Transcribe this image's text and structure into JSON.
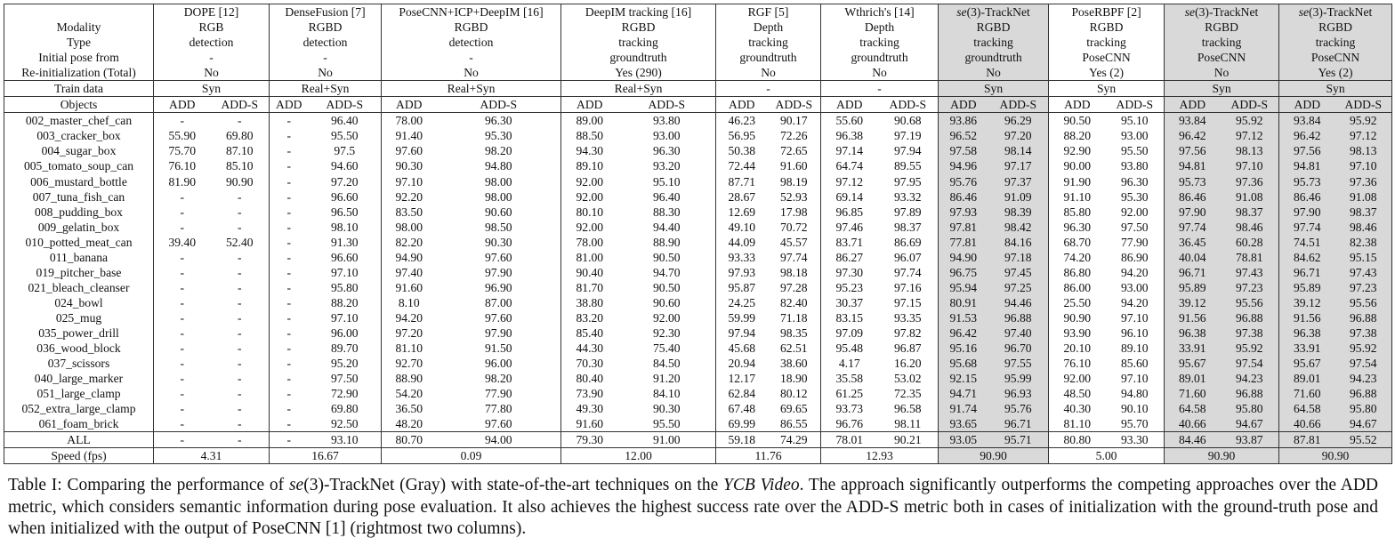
{
  "header": {
    "methods": [
      {
        "name": "DOPE [12]",
        "modality": "RGB",
        "type": "detection",
        "initial_pose": "-",
        "reinit": "No",
        "train": "Syn",
        "speed": "4.31"
      },
      {
        "name": "DenseFusion [7]",
        "modality": "RGBD",
        "type": "detection",
        "initial_pose": "-",
        "reinit": "No",
        "train": "Real+Syn",
        "speed": "16.67"
      },
      {
        "name": "PoseCNN+ICP+DeepIM [16]",
        "modality": "RGBD",
        "type": "detection",
        "initial_pose": "-",
        "reinit": "No",
        "train": "Real+Syn",
        "speed": "0.09"
      },
      {
        "name": "DeepIM tracking [16]",
        "modality": "RGBD",
        "type": "tracking",
        "initial_pose": "groundtruth",
        "reinit": "Yes (290)",
        "train": "Real+Syn",
        "speed": "12.00"
      },
      {
        "name": "RGF [5]",
        "modality": "Depth",
        "type": "tracking",
        "initial_pose": "groundtruth",
        "reinit": "No",
        "train": "-",
        "speed": "11.76"
      },
      {
        "name": "Wthrich's [14]",
        "modality": "Depth",
        "type": "tracking",
        "initial_pose": "groundtruth",
        "reinit": "No",
        "train": "-",
        "speed": "12.93"
      },
      {
        "name_prefix": "se",
        "name_mid": "(3)-TrackNet",
        "modality": "RGBD",
        "type": "tracking",
        "initial_pose": "groundtruth",
        "reinit": "No",
        "train": "Syn",
        "speed": "90.90"
      },
      {
        "name": "PoseRBPF [2]",
        "modality": "RGBD",
        "type": "tracking",
        "initial_pose": "PoseCNN",
        "reinit": "Yes (2)",
        "train": "Syn",
        "speed": "5.00"
      },
      {
        "name_prefix": "se",
        "name_mid": "(3)-TrackNet",
        "modality": "RGBD",
        "type": "tracking",
        "initial_pose": "PoseCNN",
        "reinit": "No",
        "train": "Syn",
        "speed": "90.90"
      },
      {
        "name_prefix": "se",
        "name_mid": "(3)-TrackNet",
        "modality": "RGBD",
        "type": "tracking",
        "initial_pose": "PoseCNN",
        "reinit": "Yes (2)",
        "train": "Syn",
        "speed": "90.90"
      }
    ],
    "row_labels": {
      "modality": "Modality",
      "type": "Type",
      "initial_pose": "Initial pose from",
      "reinit": "Re-initialization (Total)",
      "train": "Train data",
      "objects": "Objects",
      "speed": "Speed (fps)"
    },
    "add": "ADD",
    "adds": "ADD-S"
  },
  "rows": [
    {
      "obj": "002_master_chef_can",
      "v": [
        "-",
        "-",
        "-",
        "96.40",
        "78.00",
        "96.30",
        "89.00",
        "93.80",
        "46.23",
        "90.17",
        "55.60",
        "90.68",
        "93.86",
        "96.29",
        "90.50",
        "95.10",
        "93.84",
        "95.92",
        "93.84",
        "95.92"
      ]
    },
    {
      "obj": "003_cracker_box",
      "v": [
        "55.90",
        "69.80",
        "-",
        "95.50",
        "91.40",
        "95.30",
        "88.50",
        "93.00",
        "56.95",
        "72.26",
        "96.38",
        "97.19",
        "96.52",
        "97.20",
        "88.20",
        "93.00",
        "96.42",
        "97.12",
        "96.42",
        "97.12"
      ]
    },
    {
      "obj": "004_sugar_box",
      "v": [
        "75.70",
        "87.10",
        "-",
        "97.5",
        "97.60",
        "98.20",
        "94.30",
        "96.30",
        "50.38",
        "72.65",
        "97.14",
        "97.94",
        "97.58",
        "98.14",
        "92.90",
        "95.50",
        "97.56",
        "98.13",
        "97.56",
        "98.13"
      ]
    },
    {
      "obj": "005_tomato_soup_can",
      "v": [
        "76.10",
        "85.10",
        "-",
        "94.60",
        "90.30",
        "94.80",
        "89.10",
        "93.20",
        "72.44",
        "91.60",
        "64.74",
        "89.55",
        "94.96",
        "97.17",
        "90.00",
        "93.80",
        "94.81",
        "97.10",
        "94.81",
        "97.10"
      ]
    },
    {
      "obj": "006_mustard_bottle",
      "v": [
        "81.90",
        "90.90",
        "-",
        "97.20",
        "97.10",
        "98.00",
        "92.00",
        "95.10",
        "87.71",
        "98.19",
        "97.12",
        "97.95",
        "95.76",
        "97.37",
        "91.90",
        "96.30",
        "95.73",
        "97.36",
        "95.73",
        "97.36"
      ]
    },
    {
      "obj": "007_tuna_fish_can",
      "v": [
        "-",
        "-",
        "-",
        "96.60",
        "92.20",
        "98.00",
        "92.00",
        "96.40",
        "28.67",
        "52.93",
        "69.14",
        "93.32",
        "86.46",
        "91.09",
        "91.10",
        "95.30",
        "86.46",
        "91.08",
        "86.46",
        "91.08"
      ]
    },
    {
      "obj": "008_pudding_box",
      "v": [
        "-",
        "-",
        "-",
        "96.50",
        "83.50",
        "90.60",
        "80.10",
        "88.30",
        "12.69",
        "17.98",
        "96.85",
        "97.89",
        "97.93",
        "98.39",
        "85.80",
        "92.00",
        "97.90",
        "98.37",
        "97.90",
        "98.37"
      ]
    },
    {
      "obj": "009_gelatin_box",
      "v": [
        "-",
        "-",
        "-",
        "98.10",
        "98.00",
        "98.50",
        "92.00",
        "94.40",
        "49.10",
        "70.72",
        "97.46",
        "98.37",
        "97.81",
        "98.42",
        "96.30",
        "97.50",
        "97.74",
        "98.46",
        "97.74",
        "98.46"
      ]
    },
    {
      "obj": "010_potted_meat_can",
      "v": [
        "39.40",
        "52.40",
        "-",
        "91.30",
        "82.20",
        "90.30",
        "78.00",
        "88.90",
        "44.09",
        "45.57",
        "83.71",
        "86.69",
        "77.81",
        "84.16",
        "68.70",
        "77.90",
        "36.45",
        "60.28",
        "74.51",
        "82.38"
      ]
    },
    {
      "obj": "011_banana",
      "v": [
        "-",
        "-",
        "-",
        "96.60",
        "94.90",
        "97.60",
        "81.00",
        "90.50",
        "93.33",
        "97.74",
        "86.27",
        "96.07",
        "94.90",
        "97.18",
        "74.20",
        "86.90",
        "40.04",
        "78.81",
        "84.62",
        "95.15"
      ]
    },
    {
      "obj": "019_pitcher_base",
      "v": [
        "-",
        "-",
        "-",
        "97.10",
        "97.40",
        "97.90",
        "90.40",
        "94.70",
        "97.93",
        "98.18",
        "97.30",
        "97.74",
        "96.75",
        "97.45",
        "86.80",
        "94.20",
        "96.71",
        "97.43",
        "96.71",
        "97.43"
      ]
    },
    {
      "obj": "021_bleach_cleanser",
      "v": [
        "-",
        "-",
        "-",
        "95.80",
        "91.60",
        "96.90",
        "81.70",
        "90.50",
        "95.87",
        "97.28",
        "95.23",
        "97.16",
        "95.94",
        "97.25",
        "86.00",
        "93.00",
        "95.89",
        "97.23",
        "95.89",
        "97.23"
      ]
    },
    {
      "obj": "024_bowl",
      "v": [
        "-",
        "-",
        "-",
        "88.20",
        "8.10",
        "87.00",
        "38.80",
        "90.60",
        "24.25",
        "82.40",
        "30.37",
        "97.15",
        "80.91",
        "94.46",
        "25.50",
        "94.20",
        "39.12",
        "95.56",
        "39.12",
        "95.56"
      ]
    },
    {
      "obj": "025_mug",
      "v": [
        "-",
        "-",
        "-",
        "97.10",
        "94.20",
        "97.60",
        "83.20",
        "92.00",
        "59.99",
        "71.18",
        "83.15",
        "93.35",
        "91.53",
        "96.88",
        "90.90",
        "97.10",
        "91.56",
        "96.88",
        "91.56",
        "96.88"
      ]
    },
    {
      "obj": "035_power_drill",
      "v": [
        "-",
        "-",
        "-",
        "96.00",
        "97.20",
        "97.90",
        "85.40",
        "92.30",
        "97.94",
        "98.35",
        "97.09",
        "97.82",
        "96.42",
        "97.40",
        "93.90",
        "96.10",
        "96.38",
        "97.38",
        "96.38",
        "97.38"
      ]
    },
    {
      "obj": "036_wood_block",
      "v": [
        "-",
        "-",
        "-",
        "89.70",
        "81.10",
        "91.50",
        "44.30",
        "75.40",
        "45.68",
        "62.51",
        "95.48",
        "96.87",
        "95.16",
        "96.70",
        "20.10",
        "89.10",
        "33.91",
        "95.92",
        "33.91",
        "95.92"
      ]
    },
    {
      "obj": "037_scissors",
      "v": [
        "-",
        "-",
        "-",
        "95.20",
        "92.70",
        "96.00",
        "70.30",
        "84.50",
        "20.94",
        "38.60",
        "4.17",
        "16.20",
        "95.68",
        "97.55",
        "76.10",
        "85.60",
        "95.67",
        "97.54",
        "95.67",
        "97.54"
      ]
    },
    {
      "obj": "040_large_marker",
      "v": [
        "-",
        "-",
        "-",
        "97.50",
        "88.90",
        "98.20",
        "80.40",
        "91.20",
        "12.17",
        "18.90",
        "35.58",
        "53.02",
        "92.15",
        "95.99",
        "92.00",
        "97.10",
        "89.01",
        "94.23",
        "89.01",
        "94.23"
      ]
    },
    {
      "obj": "051_large_clamp",
      "v": [
        "-",
        "-",
        "-",
        "72.90",
        "54.20",
        "77.90",
        "73.90",
        "84.10",
        "62.84",
        "80.12",
        "61.25",
        "72.35",
        "94.71",
        "96.93",
        "48.50",
        "94.80",
        "71.60",
        "96.88",
        "71.60",
        "96.88"
      ]
    },
    {
      "obj": "052_extra_large_clamp",
      "v": [
        "-",
        "-",
        "-",
        "69.80",
        "36.50",
        "77.80",
        "49.30",
        "90.30",
        "67.48",
        "69.65",
        "93.73",
        "96.58",
        "91.74",
        "95.76",
        "40.30",
        "90.10",
        "64.58",
        "95.80",
        "64.58",
        "95.80"
      ]
    },
    {
      "obj": "061_foam_brick",
      "v": [
        "-",
        "-",
        "-",
        "92.50",
        "48.20",
        "97.60",
        "91.60",
        "95.50",
        "69.99",
        "86.55",
        "96.76",
        "98.11",
        "93.65",
        "96.71",
        "81.10",
        "95.70",
        "40.66",
        "94.67",
        "40.66",
        "94.67"
      ]
    }
  ],
  "all_row": {
    "label": "ALL",
    "v": [
      "-",
      "-",
      "-",
      "93.10",
      "80.70",
      "94.00",
      "79.30",
      "91.00",
      "59.18",
      "74.29",
      "78.01",
      "90.21",
      "93.05",
      "95.71",
      "80.80",
      "93.30",
      "84.46",
      "93.87",
      "87.81",
      "95.52"
    ]
  },
  "caption": {
    "p1": "Table I: Comparing the performance of ",
    "se": "se",
    "p2": "(3)-TrackNet (Gray) with state-of-the-art techniques on the ",
    "ycb": "YCB Video",
    "p3": ". The approach significantly outperforms the competing approaches over the ADD metric, which considers semantic information during pose evaluation. It also achieves the highest success rate over the ADD-S metric both in cases of initialization with the ground-truth pose and when initialized with the output of PoseCNN [1] (rightmost two columns)."
  },
  "gray_color": "#d9d9d9"
}
